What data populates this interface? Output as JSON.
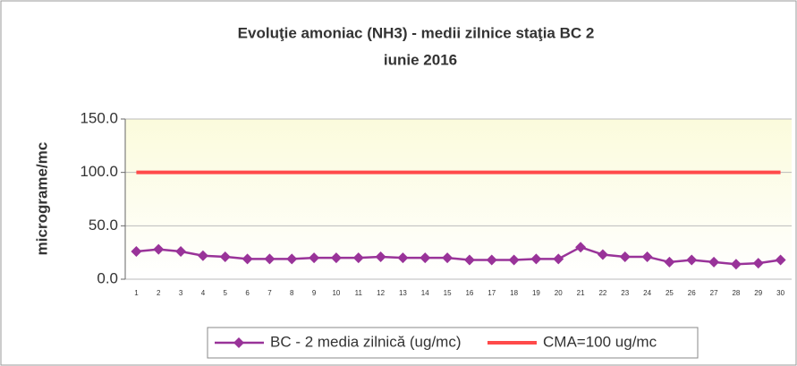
{
  "chart_data": {
    "type": "line",
    "title": "Evoluţie amoniac (NH3) - medii zilnice staţia BC 2",
    "subtitle": "iunie  2016",
    "y_label": "micrograme/mc",
    "categories": [
      "1",
      "2",
      "3",
      "4",
      "5",
      "6",
      "7",
      "8",
      "9",
      "10",
      "11",
      "12",
      "13",
      "14",
      "15",
      "16",
      "17",
      "18",
      "19",
      "20",
      "21",
      "22",
      "23",
      "24",
      "25",
      "26",
      "27",
      "28",
      "29",
      "30"
    ],
    "series": [
      {
        "name": "BC - 2 media zilnică (ug/mc)",
        "color": "#993399",
        "marker": "diamond",
        "values": [
          26,
          28,
          26,
          22,
          21,
          19,
          19,
          19,
          20,
          20,
          20,
          21,
          20,
          20,
          20,
          18,
          18,
          18,
          19,
          19,
          30,
          23,
          21,
          21,
          16,
          18,
          16,
          14,
          15,
          18
        ]
      },
      {
        "name": "CMA=100 ug/mc",
        "color": "#ff4a4a",
        "marker": "none",
        "values": [
          100,
          100,
          100,
          100,
          100,
          100,
          100,
          100,
          100,
          100,
          100,
          100,
          100,
          100,
          100,
          100,
          100,
          100,
          100,
          100,
          100,
          100,
          100,
          100,
          100,
          100,
          100,
          100,
          100,
          100
        ]
      }
    ],
    "ylim": [
      0,
      150
    ],
    "yticks": [
      {
        "value": 0,
        "label": "0.0"
      },
      {
        "value": 50,
        "label": "50.0"
      },
      {
        "value": 100,
        "label": "100.0"
      },
      {
        "value": 150,
        "label": "150.0"
      }
    ],
    "grid": true,
    "legend": "bottom"
  }
}
